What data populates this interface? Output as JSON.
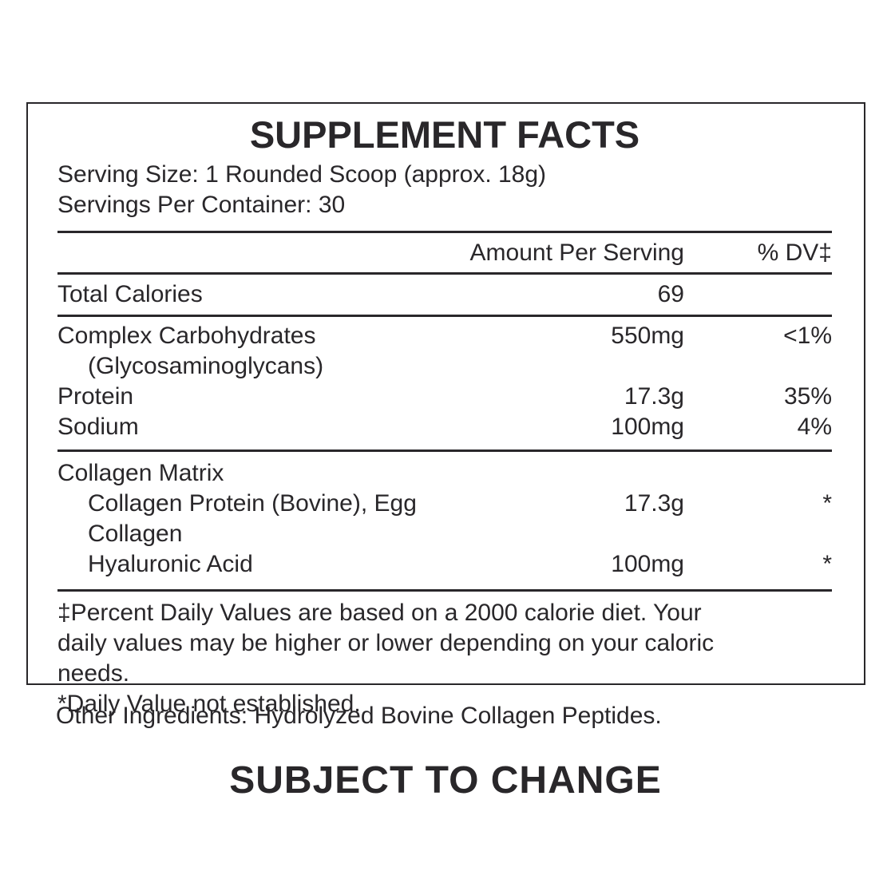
{
  "colors": {
    "text": "#29272a",
    "background": "#ffffff"
  },
  "label": {
    "title": "SUPPLEMENT FACTS",
    "serving_size": "Serving Size: 1 Rounded Scoop (approx. 18g)",
    "servings_per_container": "Servings Per Container: 30",
    "header": {
      "amount": "Amount Per Serving",
      "dv": "% DV‡"
    },
    "calories": {
      "name": "Total Calories",
      "amount": "69",
      "dv": ""
    },
    "nutrients": [
      {
        "name": "Complex Carbohydrates",
        "amount": "550mg",
        "dv": "<1%"
      },
      {
        "name": "(Glycosaminoglycans)",
        "amount": "",
        "dv": ""
      },
      {
        "name": "Protein",
        "amount": "17.3g",
        "dv": "35%"
      },
      {
        "name": "Sodium",
        "amount": "100mg",
        "dv": "4%"
      }
    ],
    "collagen": [
      {
        "name": "Collagen Matrix",
        "amount": "",
        "dv": ""
      },
      {
        "name": "Collagen Protein (Bovine), Egg Collagen",
        "amount": "17.3g",
        "dv": "*"
      },
      {
        "name": "Hyaluronic Acid",
        "amount": "100mg",
        "dv": "*"
      }
    ],
    "footnote_dv_lines": [
      "‡Percent Daily Values are based on a 2000 calorie diet. Your",
      "daily values may be higher or lower depending on your caloric",
      "needs."
    ],
    "footnote_asterisk": "*Daily Value not established."
  },
  "other_ingredients": "Other Ingredients: Hydrolyzed Bovine Collagen Peptides.",
  "footer_note": "SUBJECT TO CHANGE"
}
